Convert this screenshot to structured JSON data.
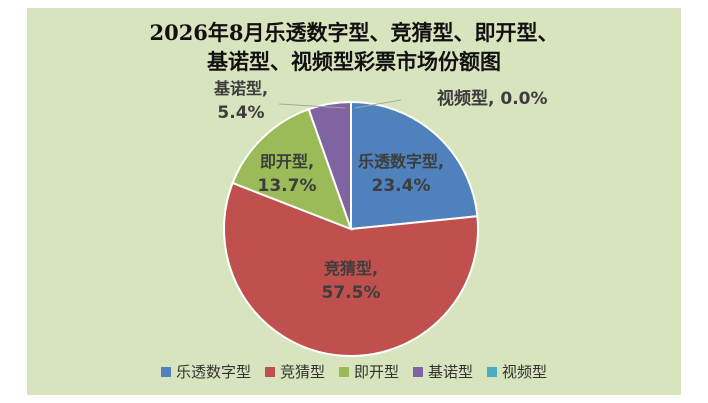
{
  "chart_data": {
    "type": "pie",
    "title_lines": [
      "2026年8月乐透数字型、竞猜型、即开型、",
      "基诺型、视频型彩票市场份额图"
    ],
    "slices": [
      {
        "name": "乐透数字型",
        "value": 23.4,
        "label": "乐透数字型,",
        "pct": "23.4%",
        "color": "#4f81bd"
      },
      {
        "name": "竞猜型",
        "value": 57.5,
        "label": "竞猜型,",
        "pct": "57.5%",
        "color": "#c0504d"
      },
      {
        "name": "即开型",
        "value": 13.7,
        "label": "即开型,",
        "pct": "13.7%",
        "color": "#9bbb59"
      },
      {
        "name": "基诺型",
        "value": 5.4,
        "label": "基诺型,",
        "pct": "5.4%",
        "color": "#8064a2"
      },
      {
        "name": "视频型",
        "value": 0.0,
        "label": "视频型,",
        "pct": "0.0%",
        "color": "#4bacc6"
      }
    ],
    "legend": {
      "placement": "bottom"
    }
  }
}
